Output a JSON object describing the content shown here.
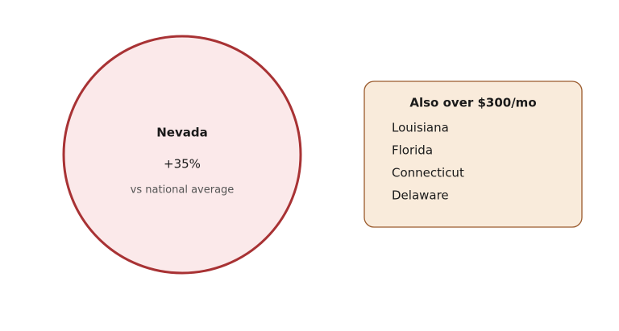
{
  "highlight": {
    "name": "Nevada",
    "value": "+35%",
    "note": "vs national average"
  },
  "list": {
    "title": "Also over $300/mo",
    "items": [
      "Louisiana",
      "Florida",
      "Connecticut",
      "Delaware"
    ]
  }
}
